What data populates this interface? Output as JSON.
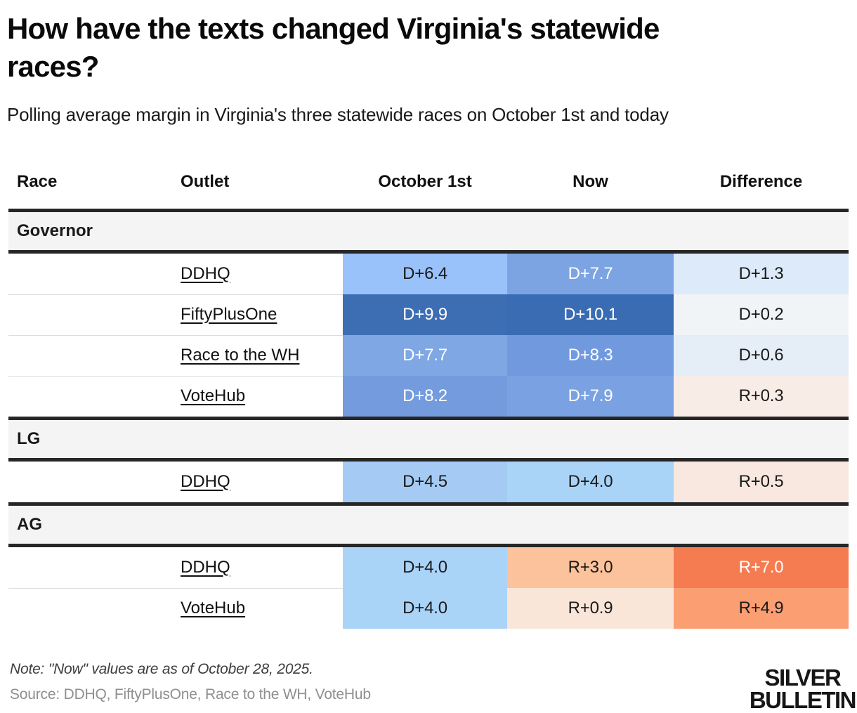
{
  "header": {
    "title": "How have the texts changed Virginia's statewide races?",
    "subtitle": "Polling average margin in Virginia's three statewide races on October 1st and today"
  },
  "table": {
    "columns": [
      "Race",
      "Outlet",
      "October 1st",
      "Now",
      "Difference"
    ],
    "sections": [
      {
        "label": "Governor",
        "rows": [
          {
            "outlet": "DDHQ",
            "cells": [
              {
                "v": "D+6.4",
                "bg": "#9ac2fa",
                "fg": "#1a1a1a"
              },
              {
                "v": "D+7.7",
                "bg": "#7ca4e2",
                "fg": "#ffffff"
              },
              {
                "v": "D+1.3",
                "bg": "#dceaf9",
                "fg": "#1a1a1a"
              }
            ]
          },
          {
            "outlet": "FiftyPlusOne",
            "cells": [
              {
                "v": "D+9.9",
                "bg": "#3d6eb4",
                "fg": "#ffffff"
              },
              {
                "v": "D+10.1",
                "bg": "#3a6cb3",
                "fg": "#ffffff"
              },
              {
                "v": "D+0.2",
                "bg": "#f1f4f7",
                "fg": "#1a1a1a"
              }
            ]
          },
          {
            "outlet": "Race to the WH",
            "cells": [
              {
                "v": "D+7.7",
                "bg": "#7ea7e3",
                "fg": "#ffffff"
              },
              {
                "v": "D+8.3",
                "bg": "#719ade",
                "fg": "#ffffff"
              },
              {
                "v": "D+0.6",
                "bg": "#e5edf7",
                "fg": "#1a1a1a"
              }
            ]
          },
          {
            "outlet": "VoteHub",
            "cells": [
              {
                "v": "D+8.2",
                "bg": "#739bde",
                "fg": "#ffffff"
              },
              {
                "v": "D+7.9",
                "bg": "#7aa2e2",
                "fg": "#ffffff"
              },
              {
                "v": "R+0.3",
                "bg": "#f8ece7",
                "fg": "#1a1a1a"
              }
            ]
          }
        ]
      },
      {
        "label": "LG",
        "rows": [
          {
            "outlet": "DDHQ",
            "cells": [
              {
                "v": "D+4.5",
                "bg": "#a5cbf4",
                "fg": "#1a1a1a"
              },
              {
                "v": "D+4.0",
                "bg": "#aad3f8",
                "fg": "#1a1a1a"
              },
              {
                "v": "R+0.5",
                "bg": "#f8e8e0",
                "fg": "#1a1a1a"
              }
            ]
          }
        ]
      },
      {
        "label": "AG",
        "rows": [
          {
            "outlet": "DDHQ",
            "cells": [
              {
                "v": "D+4.0",
                "bg": "#aad3f8",
                "fg": "#1a1a1a"
              },
              {
                "v": "R+3.0",
                "bg": "#fcc29c",
                "fg": "#1a1a1a"
              },
              {
                "v": "R+7.0",
                "bg": "#f57b51",
                "fg": "#ffffff"
              }
            ]
          },
          {
            "outlet": "VoteHub",
            "cells": [
              {
                "v": "D+4.0",
                "bg": "#aad3f8",
                "fg": "#1a1a1a"
              },
              {
                "v": "R+0.9",
                "bg": "#fae6d9",
                "fg": "#1a1a1a"
              },
              {
                "v": "R+4.9",
                "bg": "#fb9e72",
                "fg": "#1a1a1a"
              }
            ]
          }
        ]
      }
    ]
  },
  "footer": {
    "note": "Note: \"Now\" values are as of October 28, 2025.",
    "source": "Source: DDHQ, FiftyPlusOne, Race to the WH, VoteHub",
    "logo_line1": "SILVER",
    "logo_line2": "BULLETIN"
  },
  "chart_data": {
    "type": "table",
    "title": "How have the texts changed Virginia's statewide races?",
    "subtitle": "Polling average margin in Virginia's three statewide races on October 1st and today",
    "columns": [
      "Race",
      "Outlet",
      "October 1st",
      "Now",
      "Difference"
    ],
    "rows": [
      [
        "Governor",
        "DDHQ",
        "D+6.4",
        "D+7.7",
        "D+1.3"
      ],
      [
        "Governor",
        "FiftyPlusOne",
        "D+9.9",
        "D+10.1",
        "D+0.2"
      ],
      [
        "Governor",
        "Race to the WH",
        "D+7.7",
        "D+8.3",
        "D+0.6"
      ],
      [
        "Governor",
        "VoteHub",
        "D+8.2",
        "D+7.9",
        "R+0.3"
      ],
      [
        "LG",
        "DDHQ",
        "D+4.5",
        "D+4.0",
        "R+0.5"
      ],
      [
        "AG",
        "DDHQ",
        "D+4.0",
        "R+3.0",
        "R+7.0"
      ],
      [
        "AG",
        "VoteHub",
        "D+4.0",
        "R+0.9",
        "R+4.9"
      ]
    ],
    "color_encoding": "blue = Democratic margin (darker = larger D lead), orange/red = Republican margin (darker = larger R lead)",
    "note": "\"Now\" values are as of October 28, 2025.",
    "source": "DDHQ, FiftyPlusOne, Race to the WH, VoteHub"
  }
}
